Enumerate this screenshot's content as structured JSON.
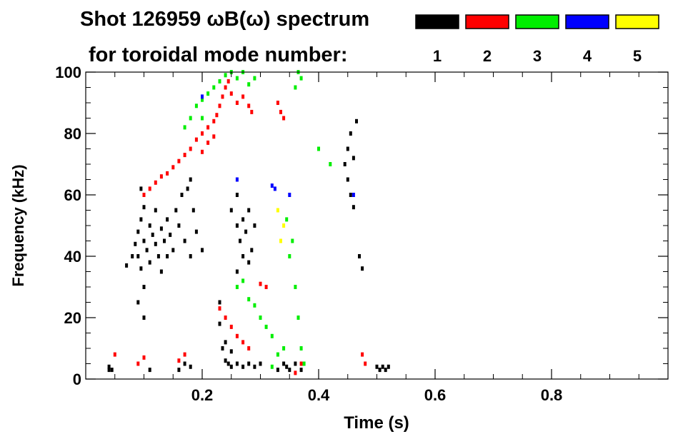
{
  "chart_data": {
    "type": "scatter",
    "title": "Shot 126959 ωB(ω) spectrum",
    "subtitle": "for toroidal mode number:",
    "xlabel": "Time (s)",
    "ylabel": "Frequency (kHz)",
    "xlim": [
      0.0,
      1.0
    ],
    "ylim": [
      0,
      100
    ],
    "x_ticks": [
      0.2,
      0.4,
      0.6,
      0.8
    ],
    "x_tick_labels": [
      "0.2",
      "0.4",
      "0.6",
      "0.8"
    ],
    "y_ticks": [
      0,
      20,
      40,
      60,
      80,
      100
    ],
    "y_tick_labels": [
      "0",
      "20",
      "40",
      "60",
      "80",
      "100"
    ],
    "grid": false,
    "legend_placement": "top-right",
    "legend": [
      {
        "label": "1",
        "color": "#000000"
      },
      {
        "label": "2",
        "color": "#ff0000"
      },
      {
        "label": "3",
        "color": "#00ee00"
      },
      {
        "label": "4",
        "color": "#0000ff"
      },
      {
        "label": "5",
        "color": "#ffff00"
      }
    ],
    "series": [
      {
        "name": "1",
        "color": "#000000",
        "points": [
          [
            0.04,
            3
          ],
          [
            0.04,
            4
          ],
          [
            0.045,
            3
          ],
          [
            0.07,
            37
          ],
          [
            0.08,
            40
          ],
          [
            0.085,
            44
          ],
          [
            0.09,
            48
          ],
          [
            0.09,
            40
          ],
          [
            0.095,
            52
          ],
          [
            0.095,
            36
          ],
          [
            0.1,
            45
          ],
          [
            0.1,
            56
          ],
          [
            0.1,
            30
          ],
          [
            0.105,
            42
          ],
          [
            0.11,
            50
          ],
          [
            0.11,
            38
          ],
          [
            0.115,
            47
          ],
          [
            0.12,
            44
          ],
          [
            0.12,
            55
          ],
          [
            0.125,
            40
          ],
          [
            0.13,
            49
          ],
          [
            0.13,
            35
          ],
          [
            0.135,
            45
          ],
          [
            0.14,
            52
          ],
          [
            0.14,
            40
          ],
          [
            0.145,
            47
          ],
          [
            0.15,
            42
          ],
          [
            0.155,
            55
          ],
          [
            0.16,
            50
          ],
          [
            0.165,
            60
          ],
          [
            0.17,
            45
          ],
          [
            0.175,
            62
          ],
          [
            0.18,
            65
          ],
          [
            0.18,
            40
          ],
          [
            0.185,
            55
          ],
          [
            0.19,
            48
          ],
          [
            0.2,
            42
          ],
          [
            0.095,
            62
          ],
          [
            0.1,
            20
          ],
          [
            0.09,
            25
          ],
          [
            0.11,
            3
          ],
          [
            0.16,
            3
          ],
          [
            0.17,
            5
          ],
          [
            0.18,
            4
          ],
          [
            0.23,
            25
          ],
          [
            0.23,
            18
          ],
          [
            0.235,
            10
          ],
          [
            0.24,
            6
          ],
          [
            0.245,
            5
          ],
          [
            0.25,
            4
          ],
          [
            0.26,
            5
          ],
          [
            0.27,
            4
          ],
          [
            0.28,
            5
          ],
          [
            0.29,
            4
          ],
          [
            0.3,
            5
          ],
          [
            0.24,
            12
          ],
          [
            0.25,
            9
          ],
          [
            0.25,
            55
          ],
          [
            0.26,
            50
          ],
          [
            0.26,
            60
          ],
          [
            0.265,
            45
          ],
          [
            0.27,
            52
          ],
          [
            0.275,
            48
          ],
          [
            0.28,
            55
          ],
          [
            0.285,
            42
          ],
          [
            0.29,
            50
          ],
          [
            0.26,
            35
          ],
          [
            0.27,
            40
          ],
          [
            0.28,
            38
          ],
          [
            0.33,
            3
          ],
          [
            0.34,
            5
          ],
          [
            0.345,
            4
          ],
          [
            0.35,
            3
          ],
          [
            0.36,
            5
          ],
          [
            0.37,
            3
          ],
          [
            0.445,
            70
          ],
          [
            0.45,
            75
          ],
          [
            0.45,
            65
          ],
          [
            0.455,
            80
          ],
          [
            0.455,
            60
          ],
          [
            0.46,
            72
          ],
          [
            0.46,
            56
          ],
          [
            0.465,
            84
          ],
          [
            0.47,
            40
          ],
          [
            0.475,
            36
          ],
          [
            0.5,
            4
          ],
          [
            0.505,
            3
          ],
          [
            0.51,
            4
          ],
          [
            0.515,
            3
          ],
          [
            0.52,
            4
          ]
        ]
      },
      {
        "name": "2",
        "color": "#ff0000",
        "points": [
          [
            0.1,
            60
          ],
          [
            0.11,
            62
          ],
          [
            0.12,
            64
          ],
          [
            0.13,
            66
          ],
          [
            0.14,
            67
          ],
          [
            0.15,
            69
          ],
          [
            0.16,
            71
          ],
          [
            0.17,
            73
          ],
          [
            0.18,
            75
          ],
          [
            0.19,
            78
          ],
          [
            0.2,
            80
          ],
          [
            0.21,
            82
          ],
          [
            0.22,
            84
          ],
          [
            0.225,
            86
          ],
          [
            0.23,
            89
          ],
          [
            0.235,
            92
          ],
          [
            0.24,
            95
          ],
          [
            0.245,
            97
          ],
          [
            0.25,
            93
          ],
          [
            0.26,
            90
          ],
          [
            0.27,
            92
          ],
          [
            0.28,
            89
          ],
          [
            0.285,
            87
          ],
          [
            0.2,
            74
          ],
          [
            0.21,
            77
          ],
          [
            0.22,
            79
          ],
          [
            0.23,
            23
          ],
          [
            0.24,
            20
          ],
          [
            0.25,
            17
          ],
          [
            0.26,
            14
          ],
          [
            0.27,
            12
          ],
          [
            0.28,
            10
          ],
          [
            0.33,
            90
          ],
          [
            0.335,
            87
          ],
          [
            0.34,
            85
          ],
          [
            0.3,
            31
          ],
          [
            0.31,
            30
          ],
          [
            0.09,
            5
          ],
          [
            0.1,
            7
          ],
          [
            0.16,
            6
          ],
          [
            0.17,
            8
          ],
          [
            0.36,
            2
          ],
          [
            0.37,
            5
          ],
          [
            0.475,
            8
          ],
          [
            0.48,
            5
          ],
          [
            0.05,
            8
          ]
        ]
      },
      {
        "name": "3",
        "color": "#00ee00",
        "points": [
          [
            0.17,
            82
          ],
          [
            0.18,
            85
          ],
          [
            0.19,
            89
          ],
          [
            0.2,
            91
          ],
          [
            0.21,
            93
          ],
          [
            0.22,
            95
          ],
          [
            0.23,
            97
          ],
          [
            0.24,
            99
          ],
          [
            0.25,
            100
          ],
          [
            0.26,
            98
          ],
          [
            0.27,
            100
          ],
          [
            0.28,
            96
          ],
          [
            0.29,
            98
          ],
          [
            0.26,
            30
          ],
          [
            0.27,
            32
          ],
          [
            0.28,
            26
          ],
          [
            0.29,
            24
          ],
          [
            0.3,
            20
          ],
          [
            0.31,
            17
          ],
          [
            0.32,
            14
          ],
          [
            0.33,
            8
          ],
          [
            0.34,
            10
          ],
          [
            0.35,
            40
          ],
          [
            0.36,
            30
          ],
          [
            0.365,
            20
          ],
          [
            0.37,
            10
          ],
          [
            0.375,
            5
          ],
          [
            0.345,
            52
          ],
          [
            0.355,
            45
          ],
          [
            0.36,
            95
          ],
          [
            0.365,
            100
          ],
          [
            0.37,
            98
          ],
          [
            0.4,
            75
          ],
          [
            0.42,
            70
          ],
          [
            0.32,
            4
          ],
          [
            0.2,
            85
          ]
        ]
      },
      {
        "name": "4",
        "color": "#0000ff",
        "points": [
          [
            0.32,
            63
          ],
          [
            0.325,
            62
          ],
          [
            0.2,
            92
          ],
          [
            0.26,
            65
          ],
          [
            0.35,
            60
          ],
          [
            0.46,
            60
          ]
        ]
      },
      {
        "name": "5",
        "color": "#ffff00",
        "points": [
          [
            0.33,
            55
          ],
          [
            0.34,
            50
          ],
          [
            0.335,
            45
          ]
        ]
      }
    ]
  }
}
